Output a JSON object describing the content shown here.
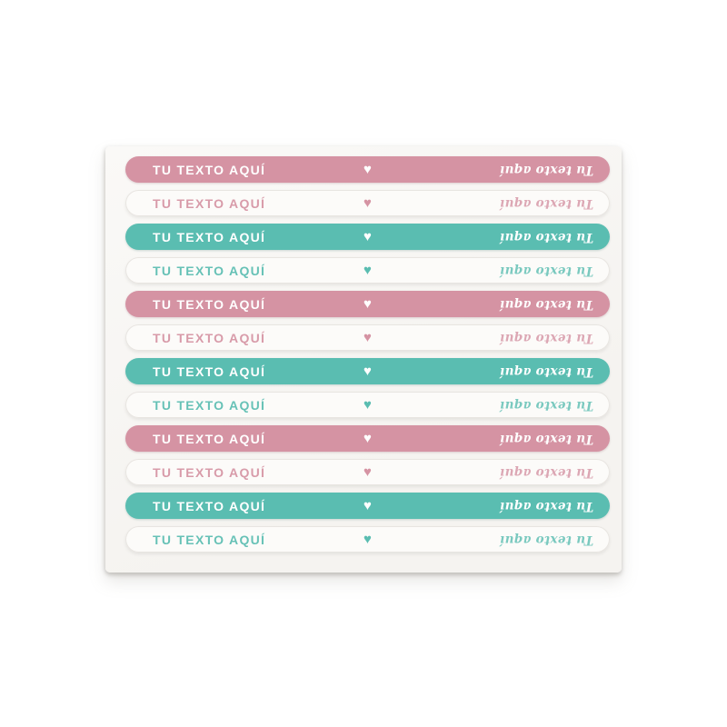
{
  "product": {
    "description": "Sheet of 12 iron-on / stick-on personalized name labels, pill shaped, with heart motif"
  },
  "colors": {
    "page_bg": "#ffffff",
    "sheet_bg": "#f5f3f0",
    "sheet_bg_light": "#faf9f7",
    "pink": "#d593a3",
    "teal": "#5abdb1",
    "white_label_bg": "#fcfbf9",
    "white_label_border": "#e8e5e1",
    "white_text": "#ffffff"
  },
  "label_text": {
    "left": "TU TEXTO AQUÍ",
    "heart_icon": "♥",
    "right": "Tu texto aquí"
  },
  "labels": [
    {
      "variant": "solid-pink"
    },
    {
      "variant": "outline-pink"
    },
    {
      "variant": "solid-teal"
    },
    {
      "variant": "outline-teal"
    },
    {
      "variant": "solid-pink"
    },
    {
      "variant": "outline-pink"
    },
    {
      "variant": "solid-teal"
    },
    {
      "variant": "outline-teal"
    },
    {
      "variant": "solid-pink"
    },
    {
      "variant": "outline-pink"
    },
    {
      "variant": "solid-teal"
    },
    {
      "variant": "outline-teal"
    }
  ]
}
